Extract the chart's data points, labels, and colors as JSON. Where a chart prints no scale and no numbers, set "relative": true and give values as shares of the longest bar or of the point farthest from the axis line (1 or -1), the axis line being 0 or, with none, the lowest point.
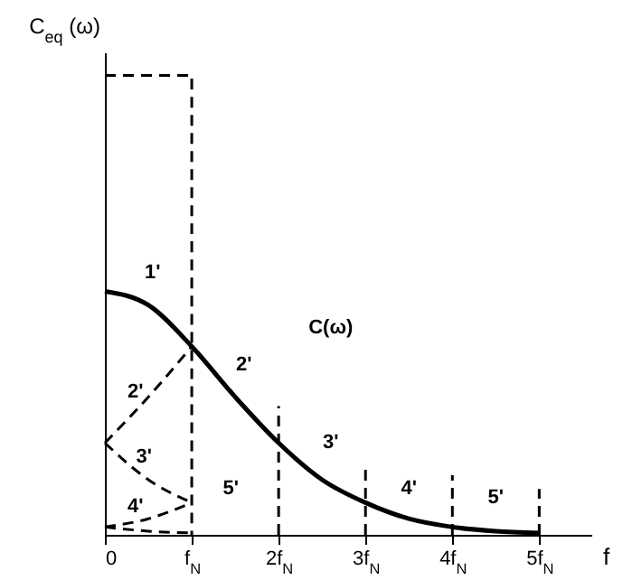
{
  "chart_data": {
    "type": "line",
    "relative": true,
    "xlabel": "f",
    "ylabel": "C$_{eq}$ (ω)",
    "xlim": [
      0,
      5.6
    ],
    "xticks": [
      {
        "value": 0,
        "label": "0"
      },
      {
        "value": 1,
        "label": "f$_{N}$"
      },
      {
        "value": 2,
        "label": "2f$_{N}$"
      },
      {
        "value": 3,
        "label": "3f$_{N}$"
      },
      {
        "value": 4,
        "label": "4f$_{N}$"
      },
      {
        "value": 5,
        "label": "5f$_{N}$"
      }
    ],
    "series": [
      {
        "color": "#000000",
        "line_style": "dashed",
        "x": [
          0,
          1,
          1
        ],
        "values": [
          1,
          1,
          0
        ]
      },
      {
        "color": "#000000",
        "line_style": "solid",
        "x": [
          0,
          0.5,
          1,
          1.5,
          2,
          2.5,
          3,
          3.5,
          4,
          4.5,
          5
        ],
        "values": [
          0.53,
          0.5,
          0.41,
          0.3,
          0.2,
          0.12,
          0.07,
          0.035,
          0.017,
          0.008,
          0.004
        ]
      },
      {
        "color": "#000000",
        "line_style": "dashed",
        "x": [
          0,
          0.5,
          1
        ],
        "values": [
          0.2,
          0.3,
          0.41
        ]
      },
      {
        "color": "#000000",
        "line_style": "dashed",
        "x": [
          0,
          0.5,
          1
        ],
        "values": [
          0.2,
          0.12,
          0.07
        ]
      },
      {
        "color": "#000000",
        "line_style": "dashed",
        "x": [
          0,
          0.5,
          1
        ],
        "values": [
          0.017,
          0.035,
          0.07
        ]
      },
      {
        "color": "#000000",
        "line_style": "dashed",
        "x": [
          0,
          0.5,
          1
        ],
        "values": [
          0.017,
          0.008,
          0.004
        ]
      },
      {
        "color": "#000000",
        "line_style": "dashed",
        "x": [
          2,
          2
        ],
        "values": [
          0,
          0.28
        ]
      },
      {
        "color": "#000000",
        "line_style": "dashed",
        "x": [
          3,
          3
        ],
        "values": [
          0,
          0.15
        ]
      },
      {
        "color": "#000000",
        "line_style": "dashed",
        "x": [
          4,
          4
        ],
        "values": [
          0,
          0.13
        ]
      },
      {
        "color": "#000000",
        "line_style": "dashed",
        "x": [
          5,
          5
        ],
        "values": [
          0,
          0.1
        ]
      }
    ],
    "annotations": [
      "1'",
      "2'",
      "3'",
      "4'",
      "5'",
      "2'",
      "3'",
      "4'",
      "5'",
      "C(ω)"
    ]
  }
}
